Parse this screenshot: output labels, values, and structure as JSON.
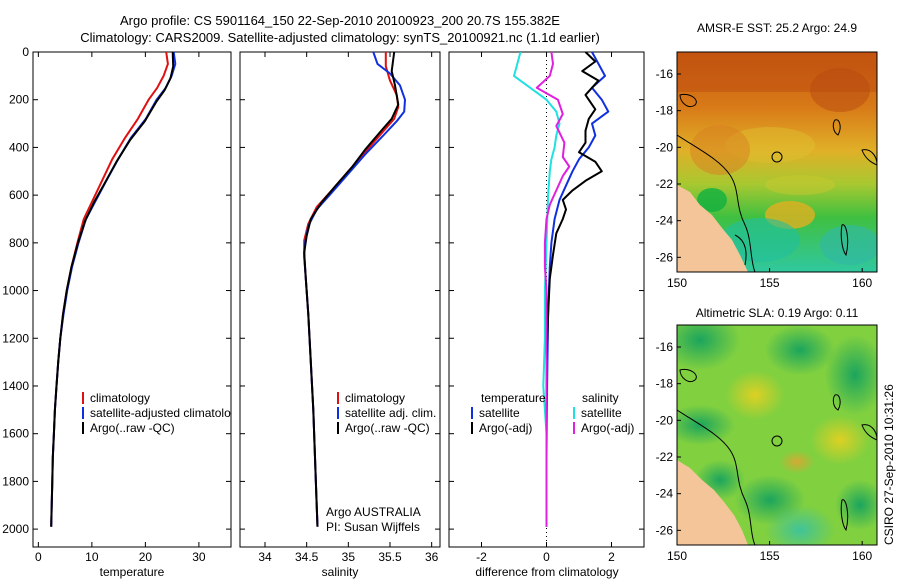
{
  "title": {
    "line1": "Argo profile: CS 5901164_150 22-Sep-2010 20100923_200 20.7S 155.382E",
    "line2": "Climatology: CARS2009. Satellite-adjusted climatology: synTS_20100921.nc (1.1d earlier)"
  },
  "side_note": "CSIRO 27-Sep-2010 10:31:26",
  "colors": {
    "clim": "#e01010",
    "sat": "#1030e0",
    "argo": "#000000",
    "sat_t": "#20e0e0",
    "argo_s": "#e020e0"
  },
  "chart_data": [
    {
      "type": "line",
      "id": "temperature",
      "xlabel": "temperature",
      "xlim": [
        -1,
        36
      ],
      "ylim": [
        0,
        2075
      ],
      "xticks": [
        "0",
        "10",
        "20",
        "30"
      ],
      "yticks": [
        "0",
        "200",
        "400",
        "600",
        "800",
        "1000",
        "1200",
        "1400",
        "1600",
        "1800",
        "2000"
      ],
      "legend": [
        "climatology",
        "satellite-adjusted climatology",
        "Argo(..raw -QC)"
      ],
      "series": [
        {
          "name": "climatology",
          "color": "clim",
          "points": [
            [
              23.9,
              0
            ],
            [
              24.2,
              50
            ],
            [
              23.4,
              100
            ],
            [
              22.2,
              150
            ],
            [
              20.6,
              200
            ],
            [
              18.6,
              280
            ],
            [
              16.2,
              360
            ],
            [
              13.8,
              450
            ],
            [
              11.9,
              540
            ],
            [
              10.2,
              620
            ],
            [
              8.5,
              700
            ],
            [
              7.3,
              800
            ],
            [
              6.2,
              900
            ],
            [
              5.3,
              1000
            ],
            [
              4.6,
              1100
            ],
            [
              4.1,
              1200
            ],
            [
              3.7,
              1300
            ],
            [
              3.4,
              1400
            ],
            [
              3.1,
              1500
            ],
            [
              2.9,
              1600
            ],
            [
              2.7,
              1700
            ],
            [
              2.6,
              1800
            ],
            [
              2.5,
              1900
            ],
            [
              2.4,
              1990
            ]
          ]
        },
        {
          "name": "satellite-adjusted climatology",
          "color": "sat",
          "points": [
            [
              25.3,
              0
            ],
            [
              25.6,
              50
            ],
            [
              24.9,
              100
            ],
            [
              23.8,
              150
            ],
            [
              22.1,
              200
            ],
            [
              20.1,
              280
            ],
            [
              17.3,
              360
            ],
            [
              14.9,
              450
            ],
            [
              12.7,
              540
            ],
            [
              10.8,
              620
            ],
            [
              8.9,
              700
            ],
            [
              7.5,
              800
            ],
            [
              6.3,
              900
            ],
            [
              5.4,
              1000
            ],
            [
              4.7,
              1100
            ],
            [
              4.1,
              1200
            ],
            [
              3.7,
              1300
            ],
            [
              3.4,
              1400
            ],
            [
              3.1,
              1500
            ],
            [
              2.9,
              1600
            ],
            [
              2.7,
              1700
            ],
            [
              2.6,
              1800
            ],
            [
              2.5,
              1900
            ],
            [
              2.4,
              1990
            ]
          ]
        },
        {
          "name": "Argo(..raw -QC)",
          "color": "argo",
          "points": [
            [
              25.1,
              0
            ],
            [
              25.2,
              60
            ],
            [
              24.7,
              110
            ],
            [
              23.6,
              160
            ],
            [
              22.0,
              210
            ],
            [
              19.9,
              290
            ],
            [
              17.1,
              370
            ],
            [
              14.6,
              460
            ],
            [
              12.4,
              550
            ],
            [
              10.4,
              630
            ],
            [
              8.7,
              710
            ],
            [
              7.4,
              800
            ],
            [
              6.2,
              900
            ],
            [
              5.3,
              1000
            ],
            [
              4.6,
              1100
            ],
            [
              4.1,
              1200
            ],
            [
              3.7,
              1300
            ],
            [
              3.4,
              1400
            ],
            [
              3.1,
              1500
            ],
            [
              2.9,
              1600
            ],
            [
              2.7,
              1700
            ],
            [
              2.6,
              1800
            ],
            [
              2.5,
              1900
            ],
            [
              2.4,
              1990
            ]
          ]
        }
      ]
    },
    {
      "type": "line",
      "id": "salinity",
      "xlabel": "salinity",
      "xlim": [
        33.7,
        36.1
      ],
      "ylim": [
        0,
        2075
      ],
      "xticks": [
        "34",
        "34.5",
        "35",
        "35.5",
        "36"
      ],
      "yticks": [],
      "legend": [
        "climatology",
        "satellite adj. clim.",
        "Argo(..raw -QC)"
      ],
      "annotation": [
        "Argo AUSTRALIA",
        "PI: Susan Wijffels"
      ],
      "series": [
        {
          "name": "climatology",
          "color": "clim",
          "points": [
            [
              35.45,
              0
            ],
            [
              35.45,
              60
            ],
            [
              35.5,
              120
            ],
            [
              35.58,
              180
            ],
            [
              35.6,
              230
            ],
            [
              35.55,
              280
            ],
            [
              35.4,
              340
            ],
            [
              35.2,
              420
            ],
            [
              35.0,
              500
            ],
            [
              34.8,
              580
            ],
            [
              34.62,
              650
            ],
            [
              34.52,
              720
            ],
            [
              34.47,
              790
            ],
            [
              34.47,
              850
            ],
            [
              34.49,
              950
            ],
            [
              34.52,
              1100
            ],
            [
              34.55,
              1300
            ],
            [
              34.58,
              1500
            ],
            [
              34.6,
              1700
            ],
            [
              34.62,
              1900
            ],
            [
              34.63,
              1990
            ]
          ]
        },
        {
          "name": "satellite adj. clim.",
          "color": "sat",
          "points": [
            [
              35.3,
              0
            ],
            [
              35.35,
              50
            ],
            [
              35.5,
              90
            ],
            [
              35.62,
              140
            ],
            [
              35.68,
              200
            ],
            [
              35.67,
              250
            ],
            [
              35.58,
              290
            ],
            [
              35.42,
              350
            ],
            [
              35.2,
              430
            ],
            [
              35.0,
              510
            ],
            [
              34.8,
              590
            ],
            [
              34.62,
              660
            ],
            [
              34.52,
              730
            ],
            [
              34.48,
              800
            ],
            [
              34.47,
              860
            ],
            [
              34.49,
              950
            ],
            [
              34.52,
              1100
            ],
            [
              34.55,
              1300
            ],
            [
              34.58,
              1500
            ],
            [
              34.6,
              1700
            ],
            [
              34.62,
              1900
            ],
            [
              34.63,
              1990
            ]
          ]
        },
        {
          "name": "Argo(..raw -QC)",
          "color": "argo",
          "points": [
            [
              35.55,
              0
            ],
            [
              35.52,
              80
            ],
            [
              35.56,
              140
            ],
            [
              35.6,
              220
            ],
            [
              35.52,
              280
            ],
            [
              35.37,
              340
            ],
            [
              35.2,
              410
            ],
            [
              35.05,
              480
            ],
            [
              34.85,
              560
            ],
            [
              34.68,
              630
            ],
            [
              34.55,
              700
            ],
            [
              34.5,
              770
            ],
            [
              34.47,
              840
            ],
            [
              34.49,
              950
            ],
            [
              34.52,
              1100
            ],
            [
              34.55,
              1300
            ],
            [
              34.58,
              1500
            ],
            [
              34.6,
              1700
            ],
            [
              34.62,
              1900
            ],
            [
              34.63,
              1990
            ]
          ]
        }
      ]
    },
    {
      "type": "line",
      "id": "difference",
      "xlabel": "difference from climatology",
      "xlim": [
        -3,
        3
      ],
      "ylim": [
        0,
        2075
      ],
      "xticks": [
        "-2",
        "0",
        "2"
      ],
      "yticks": [],
      "legend_left": {
        "header": "temperature",
        "items": [
          "satellite",
          "Argo(-adj)"
        ]
      },
      "legend_right": {
        "header": "salinity",
        "items": [
          "satellite",
          "Argo(-adj)"
        ]
      },
      "series": [
        {
          "name": "temperature satellite",
          "color": "sat",
          "points": [
            [
              1.4,
              0
            ],
            [
              1.6,
              50
            ],
            [
              1.8,
              100
            ],
            [
              1.4,
              150
            ],
            [
              1.7,
              200
            ],
            [
              1.9,
              250
            ],
            [
              1.4,
              300
            ],
            [
              1.5,
              350
            ],
            [
              1.3,
              400
            ],
            [
              1.0,
              450
            ],
            [
              0.8,
              500
            ],
            [
              0.6,
              560
            ],
            [
              0.4,
              620
            ],
            [
              0.25,
              700
            ],
            [
              0.15,
              800
            ],
            [
              0.1,
              900
            ],
            [
              0.05,
              1100
            ],
            [
              0.02,
              1400
            ],
            [
              0.0,
              1700
            ],
            [
              0.0,
              1990
            ]
          ]
        },
        {
          "name": "temperature Argo(-adj)",
          "color": "argo",
          "points": [
            [
              1.2,
              0
            ],
            [
              1.5,
              40
            ],
            [
              1.1,
              80
            ],
            [
              1.6,
              120
            ],
            [
              1.2,
              180
            ],
            [
              1.5,
              240
            ],
            [
              1.3,
              280
            ],
            [
              1.2,
              330
            ],
            [
              1.2,
              380
            ],
            [
              1.0,
              420
            ],
            [
              1.5,
              460
            ],
            [
              1.7,
              500
            ],
            [
              1.2,
              540
            ],
            [
              0.8,
              580
            ],
            [
              0.5,
              620
            ],
            [
              0.6,
              660
            ],
            [
              0.5,
              700
            ],
            [
              0.3,
              760
            ],
            [
              0.2,
              850
            ],
            [
              0.1,
              950
            ],
            [
              0.05,
              1100
            ],
            [
              0.0,
              1300
            ],
            [
              0.0,
              1700
            ],
            [
              0.0,
              1990
            ]
          ]
        },
        {
          "name": "salinity satellite",
          "color": "sat_t",
          "points": [
            [
              -0.8,
              0
            ],
            [
              -0.9,
              50
            ],
            [
              -1.0,
              100
            ],
            [
              -0.5,
              150
            ],
            [
              0.0,
              200
            ],
            [
              0.3,
              250
            ],
            [
              0.4,
              300
            ],
            [
              0.3,
              350
            ],
            [
              0.25,
              400
            ],
            [
              0.15,
              450
            ],
            [
              0.1,
              500
            ],
            [
              0.05,
              600
            ],
            [
              0.0,
              800
            ],
            [
              -0.05,
              1000
            ],
            [
              -0.05,
              1200
            ],
            [
              -0.1,
              1400
            ],
            [
              0.0,
              1600
            ],
            [
              0.0,
              1800
            ],
            [
              0.0,
              1990
            ]
          ]
        },
        {
          "name": "salinity Argo(-adj)",
          "color": "argo_s",
          "points": [
            [
              0.15,
              0
            ],
            [
              0.2,
              50
            ],
            [
              0.1,
              100
            ],
            [
              -0.3,
              150
            ],
            [
              0.35,
              200
            ],
            [
              0.5,
              260
            ],
            [
              0.3,
              310
            ],
            [
              0.55,
              380
            ],
            [
              0.5,
              440
            ],
            [
              0.7,
              480
            ],
            [
              0.5,
              520
            ],
            [
              0.3,
              580
            ],
            [
              0.1,
              640
            ],
            [
              0.0,
              700
            ],
            [
              -0.05,
              800
            ],
            [
              -0.05,
              900
            ],
            [
              0.0,
              1000
            ],
            [
              0.0,
              1200
            ],
            [
              0.0,
              1990
            ]
          ]
        }
      ]
    },
    {
      "type": "heatmap",
      "id": "sst-map",
      "title": "AMSR-E SST: 25.2 Argo: 24.9",
      "xticks": [
        "150",
        "155",
        "160"
      ],
      "yticks": [
        "-16",
        "-18",
        "-20",
        "-22",
        "-24",
        "-26"
      ]
    },
    {
      "type": "heatmap",
      "id": "sla-map",
      "title": "Altimetric SLA: 0.19 Argo: 0.11",
      "xticks": [
        "150",
        "155",
        "160"
      ],
      "yticks": [
        "-16",
        "-18",
        "-20",
        "-22",
        "-24",
        "-26"
      ]
    }
  ]
}
